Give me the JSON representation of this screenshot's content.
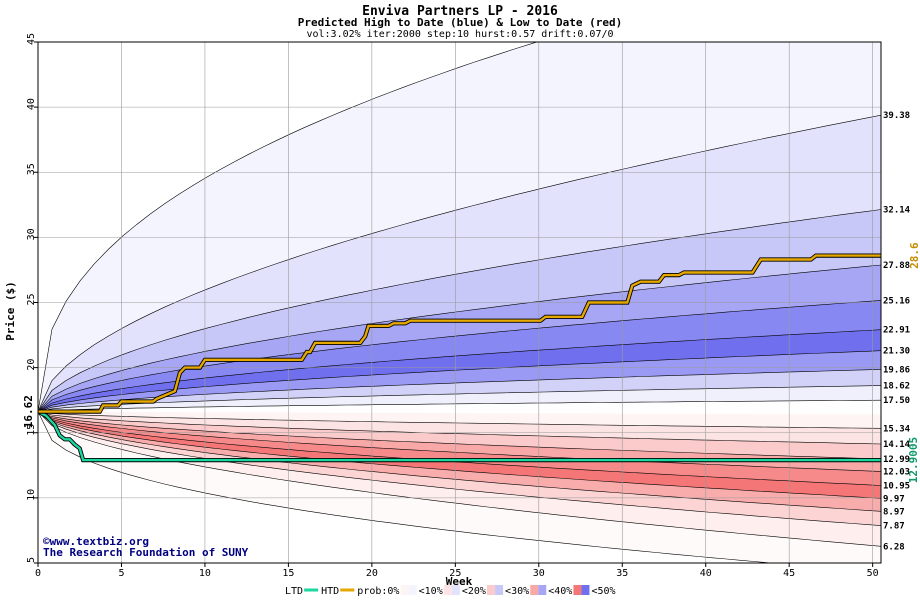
{
  "chart_data": {
    "type": "area",
    "title": "Enviva Partners LP - 2016",
    "subtitle": "Predicted High to Date (blue) &  Low to Date (red)",
    "params": "vol:3.02% iter:2000 step:10 hurst:0.57 drift:0.07/0",
    "xlabel": "Week",
    "ylabel": "Price ($)",
    "xlim": [
      0,
      50.5
    ],
    "ylim": [
      5,
      45
    ],
    "xticks": [
      0,
      5,
      10,
      15,
      20,
      25,
      30,
      35,
      40,
      45,
      50
    ],
    "yticks": [
      5,
      10,
      15,
      20,
      25,
      30,
      35,
      40,
      45
    ],
    "start_price": "16.62",
    "upper_bands": [
      {
        "end": 39.38,
        "label": "39.38",
        "fill": "#f4f4fe"
      },
      {
        "end": 32.14,
        "label": "32.14",
        "fill": "#e2e2fc"
      },
      {
        "end": 27.88,
        "label": "27.88",
        "fill": "#c8c8f8"
      },
      {
        "end": 25.16,
        "label": "25.16",
        "fill": "#a6a6f4"
      },
      {
        "end": 22.91,
        "label": "22.91",
        "fill": "#8888f2"
      },
      {
        "end": 21.3,
        "label": "21.30",
        "fill": "#7070ee"
      },
      {
        "end": 19.86,
        "label": "19.86",
        "fill": "#9a9af4"
      },
      {
        "end": 18.62,
        "label": "18.62",
        "fill": "#d2d2f8"
      },
      {
        "end": 17.5,
        "label": "17.50",
        "fill": "#f0f0fc"
      }
    ],
    "lower_bands": [
      {
        "end": 15.34,
        "label": "15.34",
        "fill": "#fff4f4"
      },
      {
        "end": 14.14,
        "label": "14.14",
        "fill": "#fde4e4"
      },
      {
        "end": 12.99,
        "label": "12.99",
        "fill": "#fbcaca"
      },
      {
        "end": 12.03,
        "label": "12.03",
        "fill": "#f9a8a8"
      },
      {
        "end": 10.95,
        "label": "10.95",
        "fill": "#f68a8a"
      },
      {
        "end": 9.97,
        "label": "9.97",
        "fill": "#f47676"
      },
      {
        "end": 8.97,
        "label": "8.97",
        "fill": "#f9acac"
      },
      {
        "end": 7.87,
        "label": "7.87",
        "fill": "#fcd4d4"
      },
      {
        "end": 6.28,
        "label": "6.28",
        "fill": "#feeeee"
      }
    ],
    "outer_upper_end": 52,
    "outer_lower_end": 4.3,
    "htd_series": {
      "name": "HTD",
      "end_label": "28.6",
      "color": "#e6a800",
      "points": [
        [
          0,
          16.62
        ],
        [
          3.7,
          16.62
        ],
        [
          3.9,
          17.1
        ],
        [
          4.8,
          17.1
        ],
        [
          5,
          17.4
        ],
        [
          6.9,
          17.4
        ],
        [
          7.1,
          17.6
        ],
        [
          8.2,
          18.2
        ],
        [
          8.5,
          19.6
        ],
        [
          8.8,
          20
        ],
        [
          9.7,
          20
        ],
        [
          10,
          20.6
        ],
        [
          15.8,
          20.6
        ],
        [
          16.1,
          21.2
        ],
        [
          16.3,
          21.2
        ],
        [
          16.6,
          21.9
        ],
        [
          19.3,
          21.9
        ],
        [
          19.6,
          22.4
        ],
        [
          19.8,
          23.2
        ],
        [
          21,
          23.2
        ],
        [
          21.3,
          23.4
        ],
        [
          22,
          23.4
        ],
        [
          22.3,
          23.6
        ],
        [
          30.1,
          23.6
        ],
        [
          30.4,
          23.9
        ],
        [
          32.6,
          23.9
        ],
        [
          33,
          25
        ],
        [
          35.3,
          25
        ],
        [
          35.6,
          26.3
        ],
        [
          36.1,
          26.6
        ],
        [
          37.2,
          26.6
        ],
        [
          37.5,
          27.1
        ],
        [
          38.4,
          27.1
        ],
        [
          38.7,
          27.3
        ],
        [
          42.8,
          27.3
        ],
        [
          43.3,
          28.3
        ],
        [
          46.3,
          28.3
        ],
        [
          46.6,
          28.6
        ],
        [
          50.5,
          28.6
        ]
      ]
    },
    "ltd_series": {
      "name": "LTD",
      "end_label": "12.9005",
      "color": "#1bd8a0",
      "points": [
        [
          0,
          16.62
        ],
        [
          0.5,
          16.3
        ],
        [
          1,
          15.6
        ],
        [
          1.3,
          14.8
        ],
        [
          1.6,
          14.5
        ],
        [
          1.9,
          14.5
        ],
        [
          2.2,
          14.1
        ],
        [
          2.5,
          13.8
        ],
        [
          2.7,
          12.9
        ],
        [
          50.5,
          12.9
        ]
      ]
    },
    "watermark": {
      "line1": "©www.textbiz.org",
      "line2": "The Research Foundation of SUNY"
    },
    "legend": {
      "ltd": "LTD",
      "htd": "HTD",
      "prob_label": "prob:0%",
      "items": [
        {
          "label": "<10%",
          "colors": [
            "#fff4f4",
            "#f4f4fe"
          ]
        },
        {
          "label": "<20%",
          "colors": [
            "#fde4e4",
            "#e2e2fc"
          ]
        },
        {
          "label": "<30%",
          "colors": [
            "#fbcaca",
            "#c8c8f8"
          ]
        },
        {
          "label": "<40%",
          "colors": [
            "#f9a8a8",
            "#a6a6f4"
          ]
        },
        {
          "label": "<50%",
          "colors": [
            "#f47676",
            "#7070ee"
          ]
        }
      ]
    },
    "grid": true
  }
}
